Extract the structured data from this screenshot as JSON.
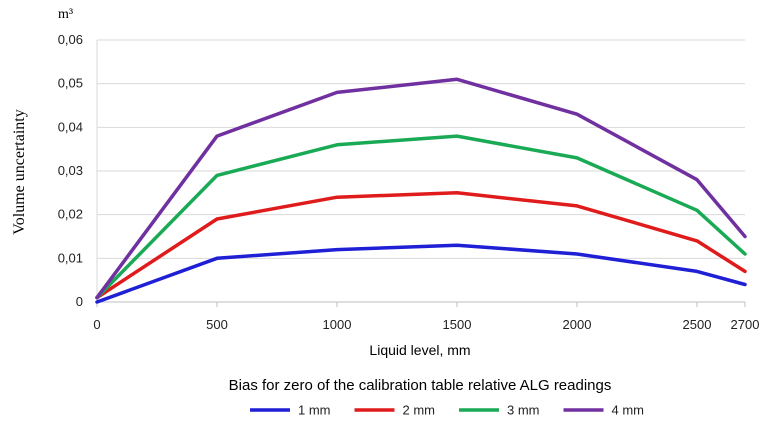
{
  "chart_data": {
    "type": "line",
    "title": "",
    "xlabel": "Liquid level, mm",
    "ylabel": "Volume uncertainty",
    "y_unit": "m³",
    "legend_title": "Bias for zero of the calibration table relative ALG readings",
    "legend_position": "bottom",
    "grid": true,
    "x": [
      0,
      500,
      1000,
      1500,
      2000,
      2500,
      2700
    ],
    "x_tick_labels": [
      "0",
      "500",
      "1000",
      "1500",
      "2000",
      "2500",
      "2700"
    ],
    "ylim": [
      0,
      0.06
    ],
    "y_ticks": [
      0,
      0.01,
      0.02,
      0.03,
      0.04,
      0.05,
      0.06
    ],
    "y_tick_labels": [
      "0",
      "0,01",
      "0,02",
      "0,03",
      "0,04",
      "0,05",
      "0,06"
    ],
    "series": [
      {
        "name": "1 mm",
        "color": "#1f1fd6",
        "values": [
          0.0,
          0.01,
          0.012,
          0.013,
          0.011,
          0.007,
          0.004
        ]
      },
      {
        "name": "2 mm",
        "color": "#e01b1b",
        "values": [
          0.001,
          0.019,
          0.024,
          0.025,
          0.022,
          0.014,
          0.007
        ]
      },
      {
        "name": "3 mm",
        "color": "#1aaa55",
        "values": [
          0.001,
          0.029,
          0.036,
          0.038,
          0.033,
          0.021,
          0.011
        ]
      },
      {
        "name": "4 mm",
        "color": "#7030a0",
        "values": [
          0.001,
          0.038,
          0.048,
          0.051,
          0.043,
          0.028,
          0.015
        ]
      }
    ]
  }
}
